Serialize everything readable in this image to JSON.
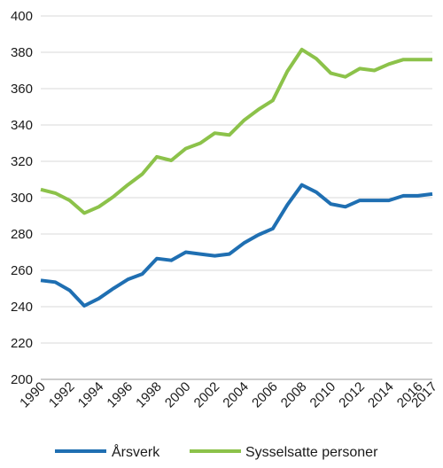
{
  "chart_data": {
    "type": "line",
    "title": "",
    "xlabel": "",
    "ylabel": "",
    "x": [
      1990,
      1991,
      1992,
      1993,
      1994,
      1995,
      1996,
      1997,
      1998,
      1999,
      2000,
      2001,
      2002,
      2003,
      2004,
      2005,
      2006,
      2007,
      2008,
      2009,
      2010,
      2011,
      2012,
      2013,
      2014,
      2015,
      2016,
      2017
    ],
    "x_tick_labels": [
      "1990",
      "1992",
      "1994",
      "1996",
      "1998",
      "2000",
      "2002",
      "2004",
      "2006",
      "2008",
      "2010",
      "2012",
      "2014",
      "2016",
      "2017"
    ],
    "xlim": [
      1990,
      2017
    ],
    "ylim": [
      200,
      400
    ],
    "y_ticks": [
      200,
      220,
      240,
      260,
      280,
      300,
      320,
      340,
      360,
      380,
      400
    ],
    "grid": true,
    "legend_position": "bottom",
    "series": [
      {
        "name": "Årsverk",
        "color": "#1f6fb2",
        "values": [
          254.5,
          253.5,
          249,
          240.5,
          244.5,
          250,
          255,
          258,
          266.5,
          265.5,
          270,
          269,
          268,
          269,
          275,
          279.5,
          283,
          296,
          307,
          303,
          296.5,
          295,
          298.5,
          298.5,
          298.5,
          301,
          301,
          302
        ]
      },
      {
        "name": "Sysselsatte personer",
        "color": "#8cc24a",
        "values": [
          304.5,
          302.5,
          298.5,
          291.5,
          295,
          300.5,
          307,
          313,
          322.5,
          320.5,
          327,
          330,
          335.5,
          334.5,
          342.5,
          348.5,
          353.5,
          369.5,
          381.5,
          376.5,
          368.5,
          366.5,
          371,
          370,
          373.5,
          376,
          376,
          376
        ]
      }
    ]
  }
}
